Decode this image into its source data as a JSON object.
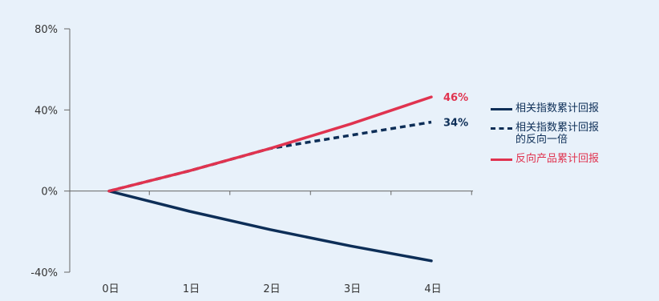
{
  "chart_data": {
    "type": "line",
    "categories": [
      "0日",
      "1日",
      "2日",
      "3日",
      "4日"
    ],
    "yticks": [
      -40,
      0,
      40,
      80
    ],
    "ytick_labels": [
      "-40%",
      "0%",
      "40%",
      "80%"
    ],
    "ylim": [
      -40,
      80
    ],
    "grid": false,
    "legend_position": "right",
    "series": [
      {
        "name": "相关指数累计回报",
        "values": [
          0,
          -10.0,
          -19.0,
          -27.1,
          -34.4
        ],
        "color": "#0d2e57",
        "style": "solid"
      },
      {
        "name": "相关指数累计回报\n的反向一倍",
        "values": [
          0,
          10.0,
          21.0,
          27.5,
          34
        ],
        "color": "#0d2e57",
        "style": "dashed"
      },
      {
        "name": "反向产品累计回报",
        "values": [
          0,
          10.0,
          21.0,
          33.1,
          46.4
        ],
        "color": "#e0334f",
        "style": "solid"
      }
    ],
    "end_labels": [
      {
        "text": "46%",
        "color": "#e0334f"
      },
      {
        "text": "34%",
        "color": "#0d2e57"
      }
    ]
  }
}
